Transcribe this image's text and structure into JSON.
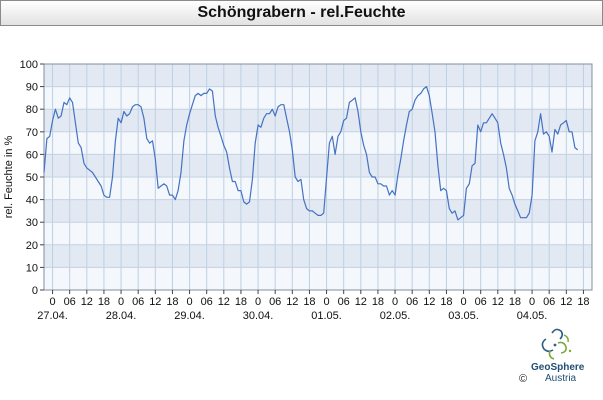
{
  "header": {
    "title": "Schöngrabern - rel.Feuchte"
  },
  "chart_data": {
    "type": "line",
    "title": "Schöngrabern - rel.Feuchte",
    "ylabel": "rel. Feuchte in %",
    "xlabel": "",
    "ylim": [
      0,
      100
    ],
    "yticks": [
      0,
      10,
      20,
      30,
      40,
      50,
      60,
      70,
      80,
      90,
      100
    ],
    "xlim": [
      -3,
      189
    ],
    "xticks": [
      {
        "h": 0,
        "label": "0"
      },
      {
        "h": 6,
        "label": "06"
      },
      {
        "h": 12,
        "label": "12"
      },
      {
        "h": 18,
        "label": "18"
      },
      {
        "h": 24,
        "label": "0"
      },
      {
        "h": 30,
        "label": "06"
      },
      {
        "h": 36,
        "label": "12"
      },
      {
        "h": 42,
        "label": "18"
      },
      {
        "h": 48,
        "label": "0"
      },
      {
        "h": 54,
        "label": "06"
      },
      {
        "h": 60,
        "label": "12"
      },
      {
        "h": 66,
        "label": "18"
      },
      {
        "h": 72,
        "label": "0"
      },
      {
        "h": 78,
        "label": "06"
      },
      {
        "h": 84,
        "label": "12"
      },
      {
        "h": 90,
        "label": "18"
      },
      {
        "h": 96,
        "label": "0"
      },
      {
        "h": 102,
        "label": "06"
      },
      {
        "h": 108,
        "label": "12"
      },
      {
        "h": 114,
        "label": "18"
      },
      {
        "h": 120,
        "label": "0"
      },
      {
        "h": 126,
        "label": "06"
      },
      {
        "h": 132,
        "label": "12"
      },
      {
        "h": 138,
        "label": "18"
      },
      {
        "h": 144,
        "label": "0"
      },
      {
        "h": 150,
        "label": "06"
      },
      {
        "h": 156,
        "label": "12"
      },
      {
        "h": 162,
        "label": "18"
      },
      {
        "h": 168,
        "label": "0"
      },
      {
        "h": 174,
        "label": "06"
      },
      {
        "h": 180,
        "label": "12"
      },
      {
        "h": 186,
        "label": "18"
      }
    ],
    "date_labels": [
      {
        "h": 0,
        "label": "27.04."
      },
      {
        "h": 24,
        "label": "28.04."
      },
      {
        "h": 48,
        "label": "29.04."
      },
      {
        "h": 72,
        "label": "30.04."
      },
      {
        "h": 96,
        "label": "01.05."
      },
      {
        "h": 120,
        "label": "02.05."
      },
      {
        "h": 144,
        "label": "03.05."
      },
      {
        "h": 168,
        "label": "04.05."
      }
    ],
    "x_hours": [
      -3,
      -2,
      -1,
      0,
      1,
      2,
      3,
      4,
      5,
      6,
      7,
      8,
      9,
      10,
      11,
      12,
      13,
      14,
      15,
      16,
      17,
      18,
      19,
      20,
      21,
      22,
      23,
      24,
      25,
      26,
      27,
      28,
      29,
      30,
      31,
      32,
      33,
      34,
      35,
      36,
      37,
      38,
      39,
      40,
      41,
      42,
      43,
      44,
      45,
      46,
      47,
      48,
      49,
      50,
      51,
      52,
      53,
      54,
      55,
      56,
      57,
      58,
      59,
      60,
      61,
      62,
      63,
      64,
      65,
      66,
      67,
      68,
      69,
      70,
      71,
      72,
      73,
      74,
      75,
      76,
      77,
      78,
      79,
      80,
      81,
      82,
      83,
      84,
      85,
      86,
      87,
      88,
      89,
      90,
      91,
      92,
      93,
      94,
      95,
      96,
      97,
      98,
      99,
      100,
      101,
      102,
      103,
      104,
      105,
      106,
      107,
      108,
      109,
      110,
      111,
      112,
      113,
      114,
      115,
      116,
      117,
      118,
      119,
      120,
      121,
      122,
      123,
      124,
      125,
      126,
      127,
      128,
      129,
      130,
      131,
      132,
      133,
      134,
      135,
      136,
      137,
      138,
      139,
      140,
      141,
      142,
      143,
      144,
      145,
      146,
      147,
      148,
      149,
      150,
      151,
      152,
      153,
      154,
      155,
      156,
      157,
      158,
      159,
      160,
      161,
      162,
      163,
      164,
      165,
      166,
      167,
      168,
      169,
      170,
      171,
      172,
      173,
      174,
      175,
      176,
      177,
      178,
      179,
      180,
      181,
      182,
      183,
      184,
      185,
      186,
      187,
      188
    ],
    "series": [
      {
        "color": "#4472c4",
        "values": [
          52,
          67,
          68,
          75,
          80,
          76,
          77,
          83,
          82,
          85,
          83,
          74,
          65,
          63,
          56,
          54,
          53,
          52,
          50,
          48,
          46,
          42,
          41,
          41,
          50,
          66,
          76,
          74,
          79,
          77,
          78,
          81,
          82,
          82,
          81,
          76,
          67,
          65,
          66,
          58,
          45,
          46,
          47,
          46,
          42,
          42,
          40,
          44,
          52,
          66,
          73,
          78,
          82,
          86,
          87,
          86,
          87,
          87,
          89,
          88,
          77,
          72,
          68,
          64,
          61,
          54,
          48,
          48,
          44,
          44,
          39,
          38,
          39,
          49,
          65,
          73,
          72,
          76,
          78,
          78,
          80,
          77,
          81,
          82,
          82,
          76,
          70,
          62,
          50,
          48,
          49,
          40,
          36,
          35,
          35,
          34,
          33,
          33,
          34,
          50,
          65,
          68,
          60,
          68,
          70,
          75,
          76,
          83,
          84,
          85,
          79,
          70,
          64,
          60,
          52,
          50,
          50,
          47,
          47,
          46,
          46,
          42,
          44,
          42,
          51,
          58,
          66,
          73,
          79,
          80,
          84,
          86,
          87,
          89,
          90,
          86,
          78,
          70,
          55,
          44,
          45,
          44,
          36,
          34,
          35,
          31,
          32,
          33,
          45,
          47,
          55,
          56,
          73,
          70,
          74,
          74,
          76,
          78,
          76,
          74,
          65,
          60,
          54,
          45,
          42,
          38,
          35,
          32,
          32,
          32,
          34,
          42,
          66,
          70,
          78,
          69,
          70,
          68,
          61,
          71,
          69,
          73,
          74,
          75,
          70,
          70,
          63,
          62
        ]
      }
    ],
    "grid": true,
    "legend": "none"
  },
  "footer": {
    "logo_name": "GeoSphere",
    "logo_sub": "Austria",
    "copyright": "©"
  }
}
